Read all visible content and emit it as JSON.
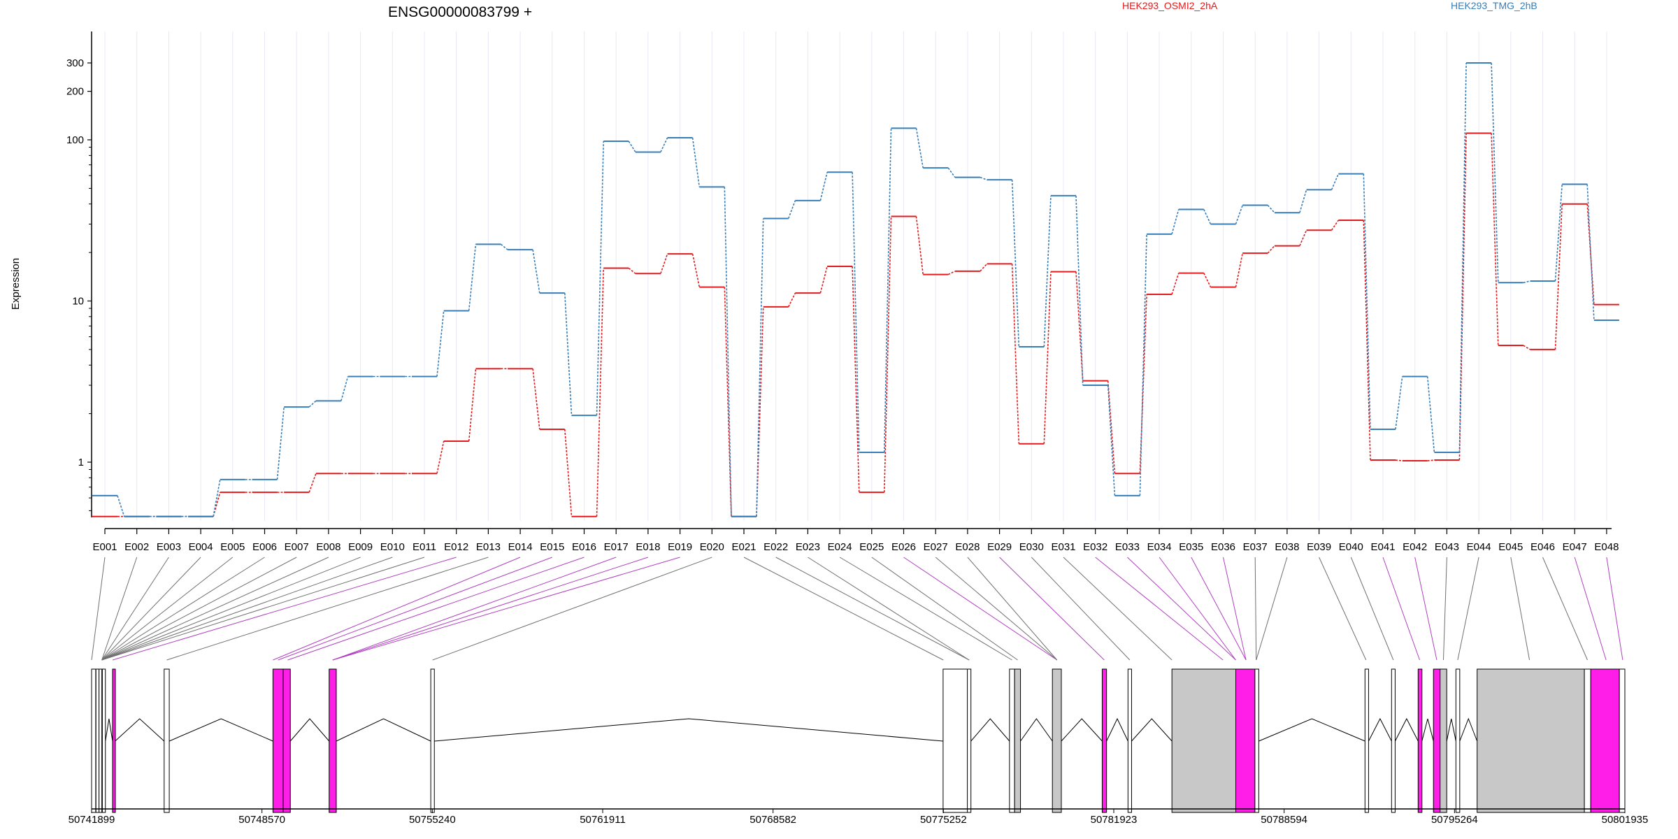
{
  "chart_data": {
    "type": "line",
    "title": "ENSG00000083799 +",
    "ylabel": "Expression",
    "y_scale": "log",
    "ylim": [
      0.42,
      360
    ],
    "y_ticks": [
      1,
      10,
      100,
      200,
      300
    ],
    "y_tick_labels": [
      "1",
      "10",
      "100",
      "200",
      "300"
    ],
    "grid": "vertical lines at exons",
    "categories": [
      "E001",
      "E002",
      "E003",
      "E004",
      "E005",
      "E006",
      "E007",
      "E008",
      "E009",
      "E010",
      "E011",
      "E012",
      "E013",
      "E014",
      "E015",
      "E016",
      "E017",
      "E018",
      "E019",
      "E020",
      "E021",
      "E022",
      "E023",
      "E024",
      "E025",
      "E026",
      "E027",
      "E028",
      "E029",
      "E030",
      "E031",
      "E032",
      "E033",
      "E034",
      "E035",
      "E036",
      "E037",
      "E038",
      "E039",
      "E040",
      "E041",
      "E042",
      "E043",
      "E044",
      "E045",
      "E046",
      "E047",
      "E048"
    ],
    "series": [
      {
        "name": "HEK293_OSMI2_2hA",
        "color": "#e31a1c",
        "values": [
          0.46,
          0.46,
          0.46,
          0.46,
          0.65,
          0.65,
          0.65,
          0.85,
          0.85,
          0.85,
          0.85,
          1.35,
          3.8,
          3.8,
          1.6,
          0.46,
          16,
          14.8,
          19.6,
          12.2,
          0.46,
          9.2,
          11.2,
          16.4,
          0.65,
          33.5,
          14.6,
          15.3,
          17.0,
          1.3,
          15.2,
          3.2,
          0.85,
          11.0,
          14.9,
          12.2,
          19.8,
          22,
          27.5,
          31.7,
          1.03,
          1.02,
          1.03,
          110,
          5.3,
          5.0,
          40,
          9.5
        ]
      },
      {
        "name": "HEK293_TMG_2hB",
        "color": "#377eb8",
        "values": [
          0.62,
          0.46,
          0.46,
          0.46,
          0.78,
          0.78,
          2.2,
          2.4,
          3.4,
          3.4,
          3.4,
          8.7,
          22.5,
          20.8,
          11.2,
          1.95,
          98,
          84,
          103,
          51,
          0.46,
          32.5,
          42,
          63,
          1.15,
          118,
          67,
          58.5,
          56.5,
          5.2,
          45,
          3.0,
          0.62,
          26,
          37,
          30,
          39.3,
          35.3,
          49,
          61.5,
          1.6,
          3.4,
          1.15,
          300,
          13.0,
          13.3,
          53,
          7.6
        ]
      }
    ],
    "legend": "top",
    "gene_model": {
      "coordinate_labels": [
        "50741899",
        "50748570",
        "50755240",
        "50761911",
        "50768582",
        "50775252",
        "50781923",
        "50788594",
        "50795264",
        "50801935"
      ],
      "coord_range": [
        50741899,
        50801935
      ],
      "exons": [
        {
          "start": 50741899,
          "end": 50742060,
          "color": "white"
        },
        {
          "start": 50742070,
          "end": 50742190,
          "color": "white"
        },
        {
          "start": 50742190,
          "end": 50742260,
          "color": "white"
        },
        {
          "start": 50742320,
          "end": 50742440,
          "color": "white"
        },
        {
          "start": 50742720,
          "end": 50742820,
          "color": "magenta"
        },
        {
          "start": 50744740,
          "end": 50744940,
          "color": "white"
        },
        {
          "start": 50749000,
          "end": 50749400,
          "color": "magenta"
        },
        {
          "start": 50749400,
          "end": 50749680,
          "color": "magenta"
        },
        {
          "start": 50751200,
          "end": 50751480,
          "color": "magenta"
        },
        {
          "start": 50755180,
          "end": 50755320,
          "color": "white"
        },
        {
          "start": 50775240,
          "end": 50776200,
          "color": "white"
        },
        {
          "start": 50776190,
          "end": 50776330,
          "color": "white"
        },
        {
          "start": 50777840,
          "end": 50778040,
          "color": "white"
        },
        {
          "start": 50778040,
          "end": 50778270,
          "color": "grey"
        },
        {
          "start": 50779520,
          "end": 50779870,
          "color": "grey"
        },
        {
          "start": 50781470,
          "end": 50781640,
          "color": "magenta"
        },
        {
          "start": 50782480,
          "end": 50782620,
          "color": "white"
        },
        {
          "start": 50784200,
          "end": 50786700,
          "color": "grey"
        },
        {
          "start": 50786700,
          "end": 50787450,
          "color": "magenta"
        },
        {
          "start": 50787450,
          "end": 50787600,
          "color": "white"
        },
        {
          "start": 50791760,
          "end": 50791900,
          "color": "white"
        },
        {
          "start": 50792800,
          "end": 50792940,
          "color": "white"
        },
        {
          "start": 50793840,
          "end": 50793990,
          "color": "magenta"
        },
        {
          "start": 50794440,
          "end": 50794700,
          "color": "magenta"
        },
        {
          "start": 50794700,
          "end": 50794960,
          "color": "grey"
        },
        {
          "start": 50795320,
          "end": 50795470,
          "color": "white"
        },
        {
          "start": 50796150,
          "end": 50800350,
          "color": "grey"
        },
        {
          "start": 50800350,
          "end": 50800600,
          "color": "white"
        },
        {
          "start": 50800600,
          "end": 50801720,
          "color": "magenta"
        },
        {
          "start": 50801720,
          "end": 50801935,
          "color": "white"
        }
      ],
      "exon_map": [
        {
          "pos": 50741899,
          "color": "black"
        },
        {
          "pos": 50742300,
          "color": "black"
        },
        {
          "pos": 50742300,
          "color": "black"
        },
        {
          "pos": 50742300,
          "color": "black"
        },
        {
          "pos": 50742300,
          "color": "black"
        },
        {
          "pos": 50742300,
          "color": "black"
        },
        {
          "pos": 50742300,
          "color": "black"
        },
        {
          "pos": 50742300,
          "color": "black"
        },
        {
          "pos": 50742300,
          "color": "black"
        },
        {
          "pos": 50742300,
          "color": "black"
        },
        {
          "pos": 50742300,
          "color": "black"
        },
        {
          "pos": 50742720,
          "color": "magenta"
        },
        {
          "pos": 50744840,
          "color": "black"
        },
        {
          "pos": 50749000,
          "color": "magenta"
        },
        {
          "pos": 50749200,
          "color": "magenta"
        },
        {
          "pos": 50749580,
          "color": "magenta"
        },
        {
          "pos": 50751340,
          "color": "magenta"
        },
        {
          "pos": 50751340,
          "color": "magenta"
        },
        {
          "pos": 50751340,
          "color": "magenta"
        },
        {
          "pos": 50755250,
          "color": "black"
        },
        {
          "pos": 50775250,
          "color": "black"
        },
        {
          "pos": 50776260,
          "color": "black"
        },
        {
          "pos": 50776260,
          "color": "black"
        },
        {
          "pos": 50777940,
          "color": "black"
        },
        {
          "pos": 50778160,
          "color": "black"
        },
        {
          "pos": 50779700,
          "color": "magenta"
        },
        {
          "pos": 50779700,
          "color": "black"
        },
        {
          "pos": 50779700,
          "color": "black"
        },
        {
          "pos": 50781550,
          "color": "magenta"
        },
        {
          "pos": 50782550,
          "color": "black"
        },
        {
          "pos": 50784200,
          "color": "black"
        },
        {
          "pos": 50786200,
          "color": "magenta"
        },
        {
          "pos": 50786700,
          "color": "magenta"
        },
        {
          "pos": 50786700,
          "color": "magenta"
        },
        {
          "pos": 50787100,
          "color": "magenta"
        },
        {
          "pos": 50787100,
          "color": "magenta"
        },
        {
          "pos": 50787500,
          "color": "black"
        },
        {
          "pos": 50787500,
          "color": "black"
        },
        {
          "pos": 50791800,
          "color": "black"
        },
        {
          "pos": 50792870,
          "color": "black"
        },
        {
          "pos": 50793900,
          "color": "magenta"
        },
        {
          "pos": 50794570,
          "color": "magenta"
        },
        {
          "pos": 50794830,
          "color": "black"
        },
        {
          "pos": 50795390,
          "color": "black"
        },
        {
          "pos": 50798200,
          "color": "black"
        },
        {
          "pos": 50800470,
          "color": "black"
        },
        {
          "pos": 50801200,
          "color": "magenta"
        },
        {
          "pos": 50801850,
          "color": "magenta"
        }
      ]
    }
  },
  "colors": {
    "series_a": "#e31a1c",
    "series_b": "#377eb8",
    "exon_magenta": "#ff1ee8",
    "exon_grey": "#c8c8c8",
    "grid": "#e8e8f6"
  }
}
